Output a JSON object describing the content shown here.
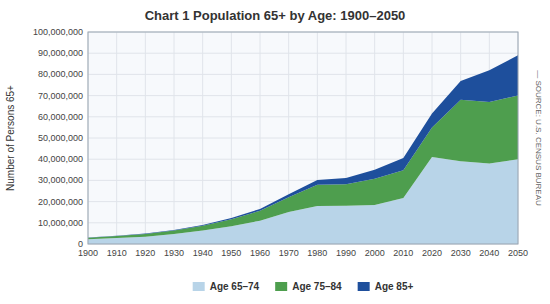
{
  "chart_data": {
    "type": "area",
    "stacked": true,
    "title": "Chart 1 Population 65+ by Age: 1900–2050",
    "y_label": "Number of Persons 65+",
    "annotations": [
      "— SOURCE: U.S. CENSUS BUREAU"
    ],
    "x": [
      1900,
      1910,
      1920,
      1930,
      1940,
      1950,
      1960,
      1970,
      1980,
      1990,
      2000,
      2010,
      2020,
      2030,
      2040,
      2050
    ],
    "series": [
      {
        "name": "Age 65–74",
        "color": "#b8d4e8",
        "values": [
          2186000,
          2793000,
          3464000,
          4721000,
          6376000,
          8415000,
          10997000,
          15044000,
          17878000,
          18045000,
          18392000,
          21717000,
          41000000,
          39000000,
          38000000,
          40000000
        ]
      },
      {
        "name": "Age 75–84",
        "color": "#4e9e4e",
        "values": [
          772000,
          989000,
          1259000,
          1641000,
          2278000,
          3278000,
          4633000,
          6994000,
          10055000,
          10112000,
          12361000,
          13061000,
          14000000,
          29000000,
          29000000,
          30000000
        ]
      },
      {
        "name": "Age 85+",
        "color": "#1e4f9c",
        "values": [
          122000,
          167000,
          210000,
          272000,
          365000,
          577000,
          929000,
          1409000,
          2240000,
          3021000,
          4240000,
          5751000,
          6500000,
          8900000,
          14900000,
          19000000
        ]
      }
    ],
    "xlim": [
      1900,
      2050
    ],
    "xticks": [
      1900,
      1910,
      1920,
      1930,
      1940,
      1950,
      1960,
      1970,
      1980,
      1990,
      2000,
      2010,
      2020,
      2030,
      2040,
      2050
    ],
    "ylim": [
      0,
      100000000
    ],
    "yticks": [
      0,
      {
        "value": 10000000,
        "label": "10,000,000"
      },
      {
        "value": 20000000,
        "label": "20,000,000"
      },
      {
        "value": 30000000,
        "label": "30,000,000"
      },
      {
        "value": 40000000,
        "label": "40,000,000"
      },
      {
        "value": 50000000,
        "label": "50,000,000"
      },
      {
        "value": 60000000,
        "label": "60,000,000"
      },
      {
        "value": 70000000,
        "label": "70,000,000"
      },
      {
        "value": 80000000,
        "label": "80,000,000"
      },
      {
        "value": 90000000,
        "label": "90,000,000"
      },
      {
        "value": 100000000,
        "label": "100,000,000"
      }
    ],
    "grid": true,
    "legend": "bottom"
  }
}
